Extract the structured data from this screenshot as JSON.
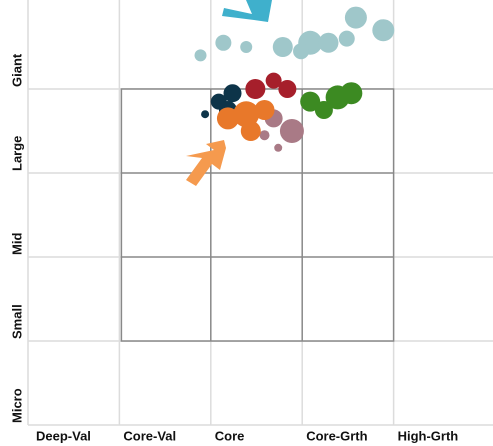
{
  "chart_data": {
    "type": "scatter",
    "xlim": [
      0,
      5
    ],
    "ylim": [
      0,
      5
    ],
    "xticks": [
      {
        "value": 0,
        "label": "Deep-Val"
      },
      {
        "value": 1,
        "label": "Core-Val"
      },
      {
        "value": 2,
        "label": "Core"
      },
      {
        "value": 3,
        "label": "Core-Grth"
      },
      {
        "value": 4,
        "label": "High-Grth"
      }
    ],
    "yticks": [
      {
        "value": 0,
        "label": "Micro"
      },
      {
        "value": 1,
        "label": "Small"
      },
      {
        "value": 2,
        "label": "Mid"
      },
      {
        "value": 3,
        "label": "Large"
      },
      {
        "value": 4,
        "label": "Giant"
      }
    ],
    "grid": true,
    "series": [
      {
        "color": "#9fc7ca",
        "x": [
          1.8,
          2.05,
          2.3,
          2.7,
          3.0,
          3.2,
          3.4,
          3.5,
          3.8,
          2.9
        ],
        "values": [
          4.4,
          4.55,
          4.5,
          4.5,
          4.55,
          4.55,
          4.6,
          4.85,
          4.7,
          4.45
        ],
        "sizes": [
          6,
          8,
          6,
          10,
          12,
          10,
          8,
          11,
          11,
          8
        ]
      },
      {
        "color": "#0d3449",
        "x": [
          2.0,
          2.15,
          1.85,
          2.1
        ],
        "values": [
          3.85,
          3.95,
          3.7,
          3.75
        ],
        "sizes": [
          8,
          9,
          4,
          9
        ]
      },
      {
        "color": "#a61f2b",
        "x": [
          2.4,
          2.75,
          2.6
        ],
        "values": [
          4.0,
          4.0,
          4.1
        ],
        "sizes": [
          10,
          9,
          8
        ]
      },
      {
        "color": "#a97a86",
        "x": [
          2.6,
          2.8,
          2.5,
          2.65
        ],
        "values": [
          3.65,
          3.5,
          3.45,
          3.3
        ],
        "sizes": [
          9,
          12,
          5,
          4
        ]
      },
      {
        "color": "#3c8a22",
        "x": [
          3.0,
          3.3,
          3.45,
          3.15
        ],
        "values": [
          3.85,
          3.9,
          3.95,
          3.75
        ],
        "sizes": [
          10,
          12,
          11,
          9
        ]
      },
      {
        "color": "#e8782a",
        "x": [
          2.1,
          2.3,
          2.5,
          2.35
        ],
        "values": [
          3.65,
          3.7,
          3.75,
          3.5
        ],
        "sizes": [
          11,
          13,
          10,
          10
        ]
      }
    ]
  }
}
